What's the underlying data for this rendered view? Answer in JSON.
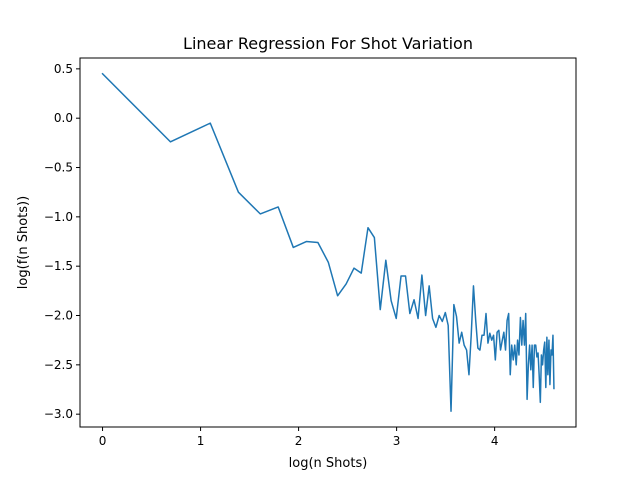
{
  "chart_data": {
    "type": "line",
    "title": "Linear Regression For Shot Variation",
    "xlabel": "log(n Shots)",
    "ylabel": "log(f(n Shots))",
    "xlim": [
      -0.23,
      4.83
    ],
    "ylim": [
      -3.13,
      0.61
    ],
    "x_ticks": [
      0,
      1,
      2,
      3,
      4
    ],
    "x_tick_labels": [
      "0",
      "1",
      "2",
      "3",
      "4"
    ],
    "y_ticks": [
      0.5,
      0.0,
      -0.5,
      -1.0,
      -1.5,
      -2.0,
      -2.5,
      -3.0
    ],
    "y_tick_labels": [
      "0.5",
      "0.0",
      "−0.5",
      "−1.0",
      "−1.5",
      "−2.0",
      "−2.5",
      "−3.0"
    ],
    "grid": false,
    "color": "#1f77b4",
    "series": [
      {
        "x": [
          0.0,
          0.693,
          1.099,
          1.386,
          1.609,
          1.792,
          1.946,
          2.079,
          2.197,
          2.303,
          2.398,
          2.485,
          2.565,
          2.639,
          2.708,
          2.773,
          2.833,
          2.89,
          2.944,
          2.996,
          3.045,
          3.091,
          3.135,
          3.178,
          3.219,
          3.258,
          3.296,
          3.332,
          3.367,
          3.401,
          3.434,
          3.466,
          3.497,
          3.526,
          3.555,
          3.584,
          3.611,
          3.638,
          3.664,
          3.689,
          3.714,
          3.738,
          3.761,
          3.784,
          3.807,
          3.829,
          3.85,
          3.871,
          3.892,
          3.912,
          3.932,
          3.951,
          3.97,
          3.989,
          4.007,
          4.025,
          4.043,
          4.06,
          4.078,
          4.094,
          4.111,
          4.127,
          4.143,
          4.159,
          4.174,
          4.19,
          4.205,
          4.22,
          4.234,
          4.248,
          4.263,
          4.277,
          4.29,
          4.304,
          4.317,
          4.331,
          4.344,
          4.357,
          4.369,
          4.382,
          4.394,
          4.406,
          4.419,
          4.431,
          4.443,
          4.454,
          4.466,
          4.477,
          4.489,
          4.5,
          4.511,
          4.522,
          4.533,
          4.543,
          4.554,
          4.564,
          4.575,
          4.585,
          4.595,
          4.605
        ],
        "y": [
          0.45,
          -0.24,
          -0.05,
          -0.75,
          -0.97,
          -0.9,
          -1.31,
          -1.25,
          -1.26,
          -1.46,
          -1.8,
          -1.68,
          -1.52,
          -1.57,
          -1.11,
          -1.21,
          -1.94,
          -1.44,
          -1.85,
          -2.03,
          -1.6,
          -1.6,
          -1.98,
          -1.84,
          -2.03,
          -1.59,
          -2.0,
          -1.7,
          -2.03,
          -2.12,
          -2.0,
          -2.06,
          -1.97,
          -2.1,
          -2.97,
          -1.89,
          -2.01,
          -2.28,
          -2.17,
          -2.3,
          -2.35,
          -2.6,
          -2.2,
          -1.7,
          -2.05,
          -2.33,
          -2.35,
          -2.2,
          -2.2,
          -1.98,
          -2.28,
          -2.18,
          -2.25,
          -2.2,
          -2.45,
          -2.17,
          -2.15,
          -2.35,
          -2.25,
          -2.17,
          -2.35,
          -2.05,
          -1.98,
          -2.6,
          -2.3,
          -2.45,
          -2.3,
          -2.5,
          -2.25,
          -2.4,
          -2.02,
          -2.3,
          -2.05,
          -2.3,
          -1.98,
          -2.85,
          -2.5,
          -2.3,
          -2.55,
          -2.3,
          -2.73,
          -2.3,
          -2.3,
          -2.42,
          -2.38,
          -2.6,
          -2.88,
          -2.4,
          -2.5,
          -2.35,
          -2.27,
          -2.73,
          -2.22,
          -2.6,
          -2.25,
          -2.7,
          -2.35,
          -2.4,
          -2.2,
          -2.74
        ]
      }
    ]
  }
}
